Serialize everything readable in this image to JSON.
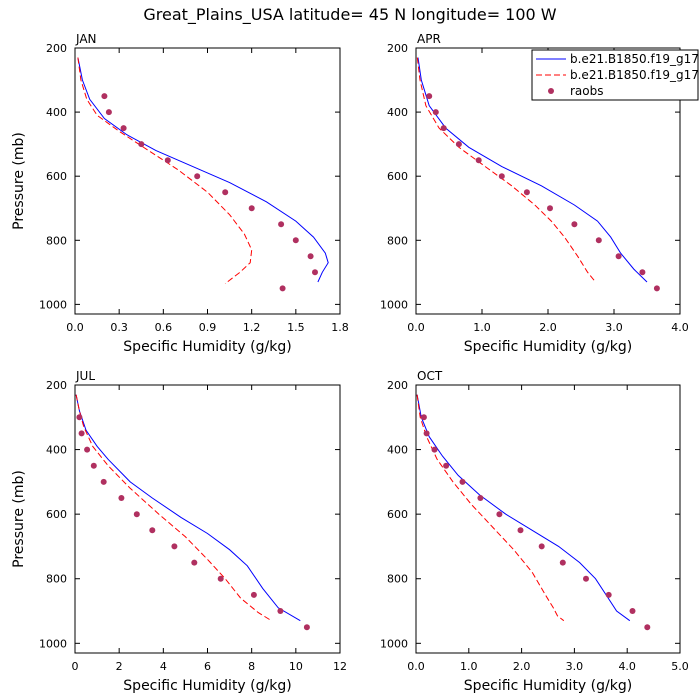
{
  "title": "Great_Plains_USA  latitude= 45 N longitude= 100 W",
  "legend": {
    "entries": [
      {
        "label": "b.e21.B1850.f19_g17.",
        "style": "solid",
        "color": "#0000ff"
      },
      {
        "label": "b.e21.B1850.f19_g17.",
        "style": "dashed",
        "color": "#ff0000"
      },
      {
        "label": "raobs",
        "style": "marker",
        "color": "#b03060"
      }
    ],
    "placement": "top-right"
  },
  "chart_data": [
    {
      "type": "line",
      "panel_label": "JAN",
      "xlabel": "Specific Humidity (g/kg)",
      "ylabel": "Pressure (mb)",
      "xlim": [
        0.0,
        1.8
      ],
      "ylim": [
        1030,
        200
      ],
      "xticks": [
        0.0,
        0.3,
        0.6,
        0.9,
        1.2,
        1.5,
        1.8
      ],
      "xtick_labels": [
        "0.0",
        "0.3",
        "0.6",
        "0.9",
        "1.2",
        "1.5",
        "1.8"
      ],
      "yticks": [
        200,
        400,
        600,
        800,
        1000
      ],
      "ytick_labels": [
        "200",
        "400",
        "600",
        "800",
        "1000"
      ],
      "series": [
        {
          "name": "b.e21.B1850.f19_g17.",
          "style": "solid",
          "color": "#0000ff",
          "x": [
            0.02,
            0.05,
            0.1,
            0.2,
            0.35,
            0.55,
            0.8,
            1.05,
            1.3,
            1.5,
            1.62,
            1.7,
            1.72,
            1.68,
            1.65
          ],
          "y": [
            230,
            300,
            360,
            420,
            470,
            520,
            570,
            620,
            680,
            740,
            790,
            840,
            870,
            900,
            930
          ]
        },
        {
          "name": "b.e21.B1850.f19_g17.",
          "style": "dashed",
          "color": "#ff0000",
          "x": [
            0.02,
            0.04,
            0.08,
            0.15,
            0.3,
            0.5,
            0.7,
            0.9,
            1.05,
            1.15,
            1.2,
            1.19,
            1.12,
            1.02
          ],
          "y": [
            230,
            300,
            360,
            410,
            460,
            520,
            580,
            650,
            720,
            780,
            830,
            870,
            900,
            935
          ]
        }
      ],
      "markers": {
        "name": "raobs",
        "color": "#b03060",
        "x": [
          0.2,
          0.23,
          0.33,
          0.45,
          0.63,
          0.83,
          1.02,
          1.2,
          1.4,
          1.5,
          1.6,
          1.63,
          1.41
        ],
        "y": [
          350,
          400,
          450,
          500,
          550,
          600,
          650,
          700,
          750,
          800,
          850,
          900,
          950
        ]
      }
    },
    {
      "type": "line",
      "panel_label": "APR",
      "xlabel": "Specific Humidity (g/kg)",
      "ylabel": "",
      "xlim": [
        0.0,
        4.0
      ],
      "ylim": [
        1030,
        200
      ],
      "xticks": [
        0.0,
        1.0,
        2.0,
        3.0,
        4.0
      ],
      "xtick_labels": [
        "0.0",
        "1.0",
        "2.0",
        "3.0",
        "4.0"
      ],
      "yticks": [
        200,
        400,
        600,
        800,
        1000
      ],
      "ytick_labels": [
        "200",
        "400",
        "600",
        "800",
        "1000"
      ],
      "series": [
        {
          "name": "b.e21.B1850.f19_g17.",
          "style": "solid",
          "color": "#0000ff",
          "x": [
            0.03,
            0.08,
            0.2,
            0.45,
            0.8,
            1.3,
            1.9,
            2.4,
            2.75,
            2.95,
            3.1,
            3.3,
            3.5
          ],
          "y": [
            230,
            300,
            380,
            450,
            510,
            570,
            630,
            690,
            740,
            790,
            840,
            890,
            930
          ]
        },
        {
          "name": "b.e21.B1850.f19_g17.",
          "style": "dashed",
          "color": "#ff0000",
          "x": [
            0.02,
            0.06,
            0.15,
            0.35,
            0.65,
            1.05,
            1.45,
            1.8,
            2.05,
            2.25,
            2.45,
            2.6,
            2.72
          ],
          "y": [
            230,
            300,
            380,
            450,
            510,
            570,
            630,
            690,
            740,
            790,
            850,
            900,
            930
          ]
        }
      ],
      "markers": {
        "name": "raobs",
        "color": "#b03060",
        "x": [
          0.2,
          0.3,
          0.42,
          0.65,
          0.95,
          1.3,
          1.68,
          2.03,
          2.4,
          2.77,
          3.07,
          3.43,
          3.65
        ],
        "y": [
          350,
          400,
          450,
          500,
          550,
          600,
          650,
          700,
          750,
          800,
          850,
          900,
          950
        ]
      }
    },
    {
      "type": "line",
      "panel_label": "JUL",
      "xlabel": "Specific Humidity (g/kg)",
      "ylabel": "Pressure (mb)",
      "xlim": [
        0,
        12
      ],
      "ylim": [
        1030,
        200
      ],
      "xticks": [
        0,
        2,
        4,
        6,
        8,
        10,
        12
      ],
      "xtick_labels": [
        "0",
        "2",
        "4",
        "6",
        "8",
        "10",
        "12"
      ],
      "yticks": [
        200,
        400,
        600,
        800,
        1000
      ],
      "ytick_labels": [
        "200",
        "400",
        "600",
        "800",
        "1000"
      ],
      "series": [
        {
          "name": "b.e21.B1850.f19_g17.",
          "style": "solid",
          "color": "#0000ff",
          "x": [
            0.05,
            0.2,
            0.5,
            1.0,
            1.5,
            2.5,
            3.5,
            4.8,
            6.0,
            7.0,
            7.8,
            8.5,
            9.2,
            10.2
          ],
          "y": [
            230,
            280,
            340,
            390,
            430,
            500,
            550,
            610,
            660,
            710,
            760,
            830,
            890,
            930
          ]
        },
        {
          "name": "b.e21.B1850.f19_g17.",
          "style": "dashed",
          "color": "#ff0000",
          "x": [
            0.05,
            0.2,
            0.4,
            0.8,
            1.5,
            2.5,
            3.8,
            5.0,
            6.0,
            6.8,
            7.5,
            8.3,
            8.9
          ],
          "y": [
            230,
            280,
            330,
            390,
            450,
            520,
            600,
            670,
            740,
            800,
            860,
            905,
            930
          ]
        }
      ],
      "markers": {
        "name": "raobs",
        "color": "#b03060",
        "x": [
          0.2,
          0.3,
          0.55,
          0.85,
          1.3,
          2.1,
          2.8,
          3.5,
          4.5,
          5.4,
          6.6,
          8.1,
          9.3,
          10.5
        ],
        "y": [
          300,
          350,
          400,
          450,
          500,
          550,
          600,
          650,
          700,
          750,
          800,
          850,
          900,
          950
        ]
      }
    },
    {
      "type": "line",
      "panel_label": "OCT",
      "xlabel": "Specific Humidity (g/kg)",
      "ylabel": "",
      "xlim": [
        0.0,
        5.0
      ],
      "ylim": [
        1030,
        200
      ],
      "xticks": [
        0.0,
        1.0,
        2.0,
        3.0,
        4.0,
        5.0
      ],
      "xtick_labels": [
        "0.0",
        "1.0",
        "2.0",
        "3.0",
        "4.0",
        "5.0"
      ],
      "yticks": [
        200,
        400,
        600,
        800,
        1000
      ],
      "ytick_labels": [
        "200",
        "400",
        "600",
        "800",
        "1000"
      ],
      "series": [
        {
          "name": "b.e21.B1850.f19_g17.",
          "style": "solid",
          "color": "#0000ff",
          "x": [
            0.02,
            0.1,
            0.25,
            0.5,
            0.8,
            1.2,
            1.7,
            2.2,
            2.7,
            3.1,
            3.4,
            3.6,
            3.8,
            4.05
          ],
          "y": [
            230,
            300,
            360,
            420,
            480,
            540,
            600,
            650,
            700,
            750,
            800,
            850,
            900,
            930
          ]
        },
        {
          "name": "b.e21.B1850.f19_g17.",
          "style": "dashed",
          "color": "#ff0000",
          "x": [
            0.02,
            0.08,
            0.2,
            0.4,
            0.7,
            1.05,
            1.45,
            1.85,
            2.2,
            2.45,
            2.6,
            2.68,
            2.8
          ],
          "y": [
            230,
            300,
            360,
            430,
            500,
            570,
            640,
            710,
            780,
            850,
            890,
            915,
            930
          ]
        }
      ],
      "markers": {
        "name": "raobs",
        "color": "#b03060",
        "x": [
          0.15,
          0.2,
          0.35,
          0.57,
          0.88,
          1.22,
          1.58,
          1.98,
          2.38,
          2.78,
          3.22,
          3.65,
          4.1,
          4.38
        ],
        "y": [
          300,
          350,
          400,
          450,
          500,
          550,
          600,
          650,
          700,
          750,
          800,
          850,
          900,
          950
        ]
      }
    }
  ]
}
